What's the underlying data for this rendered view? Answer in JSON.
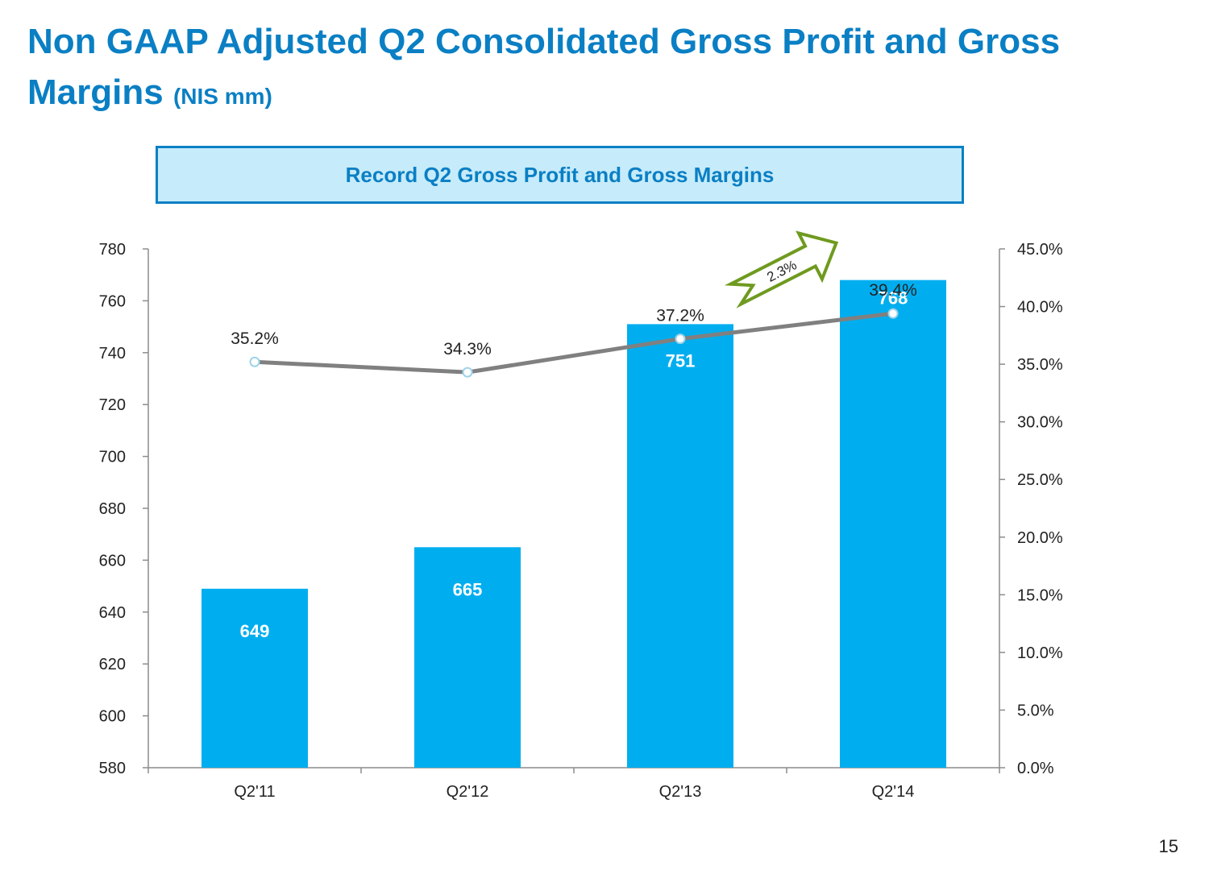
{
  "title": {
    "main": "Non GAAP Adjusted Q2 Consolidated Gross Profit and Gross Margins",
    "unit": "(NIS mm)"
  },
  "banner": {
    "text": "Record Q2 Gross Profit and Gross Margins"
  },
  "page_number": "15",
  "colors": {
    "title": "#0a7fc4",
    "bar": "#00aeef",
    "line": "#808080",
    "arrow": "#6f9a1f"
  },
  "chart_data": {
    "type": "bar",
    "categories": [
      "Q2'11",
      "Q2'12",
      "Q2'13",
      "Q2'14"
    ],
    "series": [
      {
        "type": "bar",
        "axis": "left",
        "values": [
          649,
          665,
          751,
          768
        ],
        "labels": [
          "649",
          "665",
          "751",
          "768"
        ]
      },
      {
        "type": "line",
        "axis": "right",
        "values": [
          35.2,
          34.3,
          37.2,
          39.4
        ],
        "labels": [
          "35.2%",
          "34.3%",
          "37.2%",
          "39.4%"
        ]
      }
    ],
    "left_axis": {
      "range": [
        580,
        780
      ],
      "ticks": [
        "580",
        "600",
        "620",
        "640",
        "660",
        "680",
        "700",
        "720",
        "740",
        "760",
        "780"
      ]
    },
    "right_axis": {
      "range": [
        0,
        45
      ],
      "ticks": [
        "0.0%",
        "5.0%",
        "10.0%",
        "15.0%",
        "20.0%",
        "25.0%",
        "30.0%",
        "35.0%",
        "40.0%",
        "45.0%"
      ]
    },
    "annotation": {
      "text": "2.3%",
      "type": "arrow"
    },
    "grid": false,
    "legend": "none"
  }
}
